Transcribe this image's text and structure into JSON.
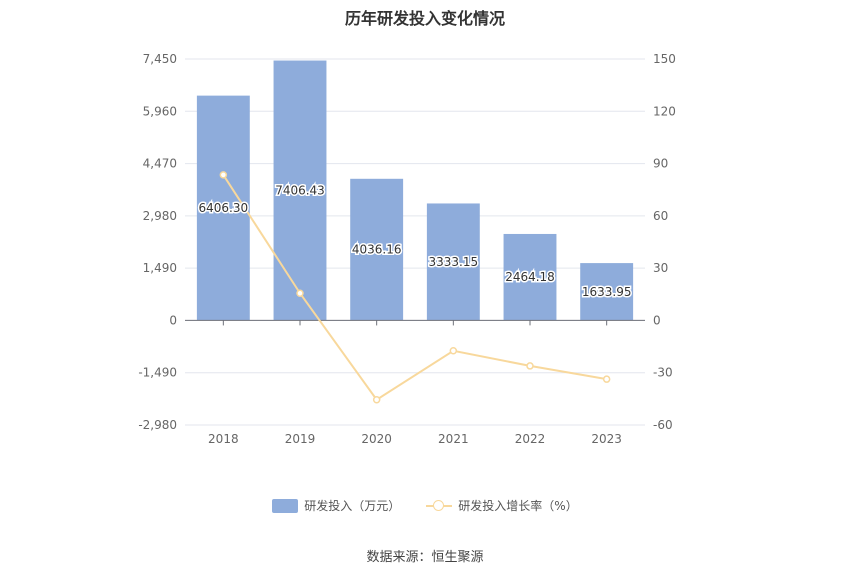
{
  "chart_data": {
    "type": "bar",
    "title": "历年研发投入变化情况",
    "categories": [
      "2018",
      "2019",
      "2020",
      "2021",
      "2022",
      "2023"
    ],
    "series": [
      {
        "name": "研发投入（万元）",
        "type": "bar",
        "axis": "left",
        "color": "#8eacdb",
        "values": [
          6406.3,
          7406.43,
          4036.16,
          3333.15,
          2464.18,
          1633.95
        ],
        "labels": [
          "6406.30",
          "7406.43",
          "4036.16",
          "3333.15",
          "2464.18",
          "1633.95"
        ]
      },
      {
        "name": "研发投入增长率（%）",
        "type": "line",
        "axis": "right",
        "color": "#f8d89c",
        "values": [
          83.5,
          15.6,
          -45.5,
          -17.4,
          -26.1,
          -33.7
        ]
      }
    ],
    "y_left": {
      "ticks": [
        "7,450",
        "5,960",
        "4,470",
        "2,980",
        "1,490",
        "0",
        "-1,490",
        "-2,980"
      ],
      "range": [
        -2980,
        7450
      ]
    },
    "y_right": {
      "ticks": [
        "150",
        "120",
        "90",
        "60",
        "30",
        "0",
        "-30",
        "-60"
      ],
      "range": [
        -60,
        150
      ]
    },
    "grid": true,
    "legend_position": "bottom"
  },
  "source": "数据来源：恒生聚源"
}
